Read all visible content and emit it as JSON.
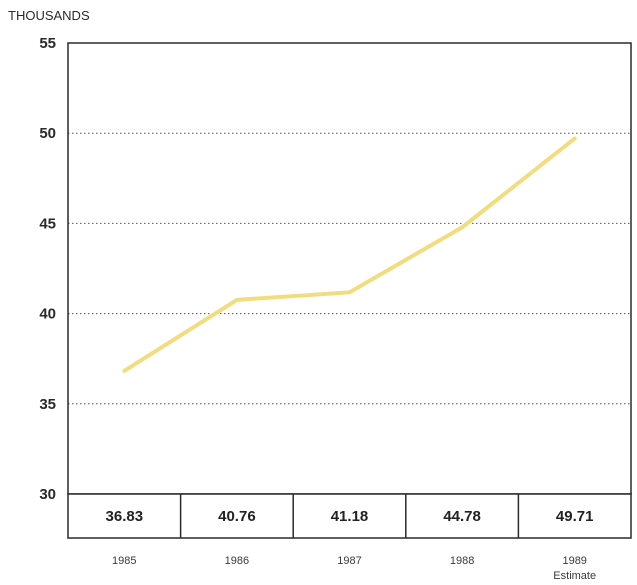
{
  "chart_data": {
    "type": "line",
    "unit_label": "THOUSANDS",
    "categories": [
      "1985",
      "1986",
      "1987",
      "1988",
      "1989"
    ],
    "category_sublabels": [
      "",
      "",
      "",
      "",
      "Estimate"
    ],
    "values": [
      36.83,
      40.76,
      41.18,
      44.78,
      49.71
    ],
    "value_labels": [
      "36.83",
      "40.76",
      "41.18",
      "44.78",
      "49.71"
    ],
    "y_ticks": [
      "30",
      "35",
      "40",
      "45",
      "50",
      "55"
    ],
    "ylim": [
      30,
      55
    ],
    "grid": "dotted horizontal",
    "line_color": "#f2dd7e"
  }
}
